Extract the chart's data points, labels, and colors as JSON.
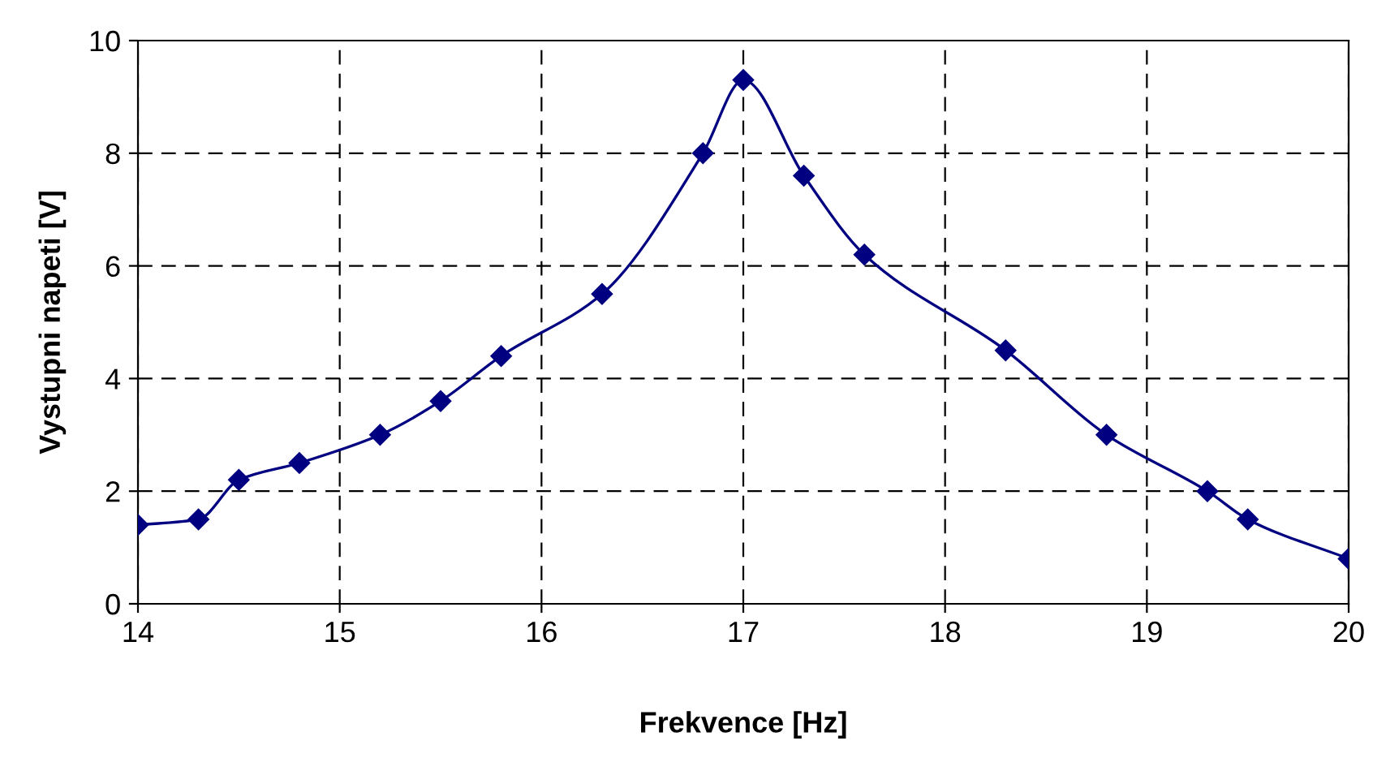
{
  "chart_data": {
    "type": "line",
    "xlabel": "Frekvence [Hz]",
    "ylabel": "Vystupni napeti [V]",
    "series": [
      {
        "color": "#000080",
        "x": [
          14,
          14.3,
          14.5,
          14.8,
          15.2,
          15.5,
          15.8,
          16.3,
          16.8,
          17,
          17.3,
          17.6,
          18.3,
          18.8,
          19.3,
          19.5,
          20
        ],
        "values": [
          1.4,
          1.5,
          2.2,
          2.5,
          3.0,
          3.6,
          4.4,
          5.5,
          8.0,
          9.3,
          7.6,
          6.2,
          4.5,
          3.0,
          2.0,
          1.5,
          0.8
        ]
      }
    ],
    "xlim": [
      14,
      20
    ],
    "xticks": [
      14,
      15,
      16,
      17,
      18,
      19,
      20
    ],
    "ylim": [
      0,
      10
    ],
    "yticks": [
      0,
      2,
      4,
      6,
      8,
      10
    ],
    "grid": true,
    "marker": "diamond",
    "line_style": "solid"
  }
}
